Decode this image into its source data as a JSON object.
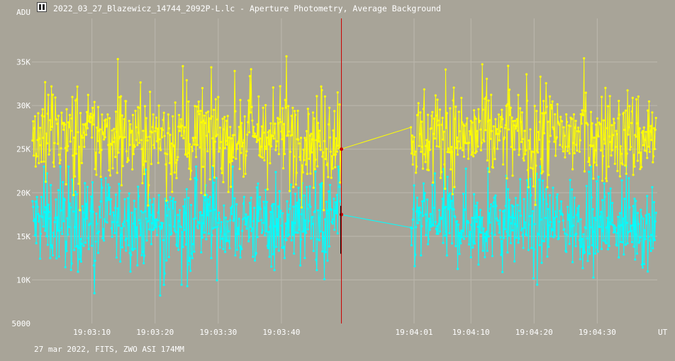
{
  "window": {
    "title": "2022_03_27_Blazewicz_14744_2092P-L.lc - Aperture Photometry, Average Background",
    "icon": "lightcurve-app-icon"
  },
  "footer": {
    "text": "27 mar 2022, FITS, ZWO ASI 174MM"
  },
  "colors": {
    "background": "#a8a498",
    "grid": "#bcb8ae",
    "series_a": "#ffff00",
    "series_b": "#00ffff",
    "cursor": "#cc0000"
  },
  "chart_data": {
    "type": "line",
    "xlabel": "UT",
    "ylabel": "ADU",
    "ylim": [
      5000,
      40000
    ],
    "xlim": [
      "19:03:00.5",
      "19:04:39.5"
    ],
    "grid": true,
    "yticks": [
      {
        "value": 10000,
        "label": "10K"
      },
      {
        "value": 15000,
        "label": "15K"
      },
      {
        "value": 20000,
        "label": "20K"
      },
      {
        "value": 25000,
        "label": "25K"
      },
      {
        "value": 30000,
        "label": "30K"
      },
      {
        "value": 35000,
        "label": "35K"
      }
    ],
    "ybottom_label": "5000",
    "xticks": [
      "19:03:10",
      "19:03:20",
      "19:03:30",
      "19:03:40",
      "19:04:01",
      "19:04:10",
      "19:04:20",
      "19:04:30"
    ],
    "cursor_time": "19:03:49.5",
    "gap": {
      "from": "19:03:49.5",
      "to": "19:04:00.5"
    },
    "series": [
      {
        "color": "#ffff00",
        "mean": 26500,
        "typical_min": 20000,
        "typical_max": 33500,
        "max": 39000,
        "min": 18000,
        "value_at_cursor": 25000,
        "value_after_gap": 27500
      },
      {
        "color": "#00ffff",
        "mean": 16500,
        "typical_min": 10000,
        "typical_max": 22500,
        "max": 23000,
        "min": 8000,
        "value_at_cursor": 17500,
        "value_after_gap": 16000
      }
    ]
  }
}
